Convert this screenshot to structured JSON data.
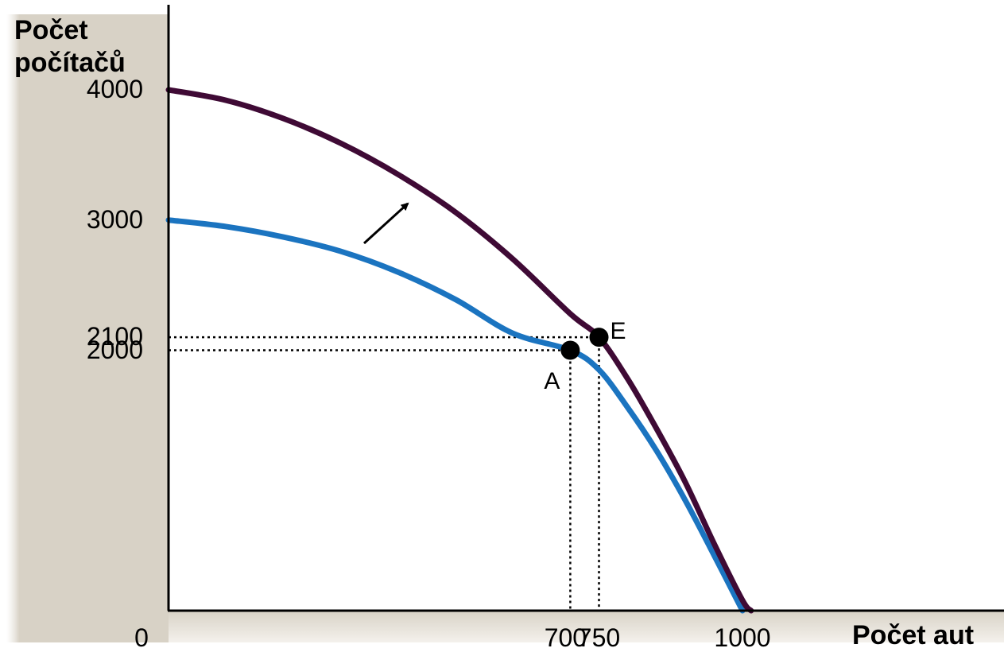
{
  "chart_data": {
    "type": "line",
    "ylabel": "Počet počítačů",
    "xlabel": "Počet aut",
    "origin_label": "0",
    "xlim": [
      0,
      1000
    ],
    "ylim": [
      0,
      4000
    ],
    "x_ticks": [
      {
        "value": 700,
        "label": "700"
      },
      {
        "value": 750,
        "label": "750"
      },
      {
        "value": 1000,
        "label": "1000"
      }
    ],
    "y_ticks": [
      {
        "value": 4000,
        "label": "4000"
      },
      {
        "value": 3000,
        "label": "3000"
      },
      {
        "value": 2100,
        "label": "2100"
      },
      {
        "value": 2000,
        "label": "2000"
      }
    ],
    "series": [
      {
        "color": "#3f0a35",
        "x": [
          0,
          100,
          200,
          300,
          400,
          500,
          600,
          700,
          750,
          800,
          850,
          900,
          950,
          1000,
          1015
        ],
        "y": [
          4000,
          3920,
          3780,
          3590,
          3350,
          3060,
          2700,
          2280,
          2100,
          1780,
          1400,
          990,
          520,
          80,
          0
        ]
      },
      {
        "color": "#1b74c0",
        "x": [
          0,
          100,
          200,
          300,
          400,
          500,
          600,
          700,
          750,
          800,
          850,
          900,
          950,
          1000
        ],
        "y": [
          3000,
          2950,
          2870,
          2760,
          2600,
          2390,
          2130,
          2000,
          1850,
          1560,
          1230,
          850,
          430,
          0
        ]
      }
    ],
    "points": [
      {
        "label": "A",
        "x": 700,
        "y": 2000
      },
      {
        "label": "E",
        "x": 750,
        "y": 2100
      }
    ],
    "annotations": [
      "arrow: shift of curve outward"
    ],
    "colors": {
      "axis_band": "#d8d2c6",
      "axis": "#000000",
      "guide": "#000000"
    }
  }
}
